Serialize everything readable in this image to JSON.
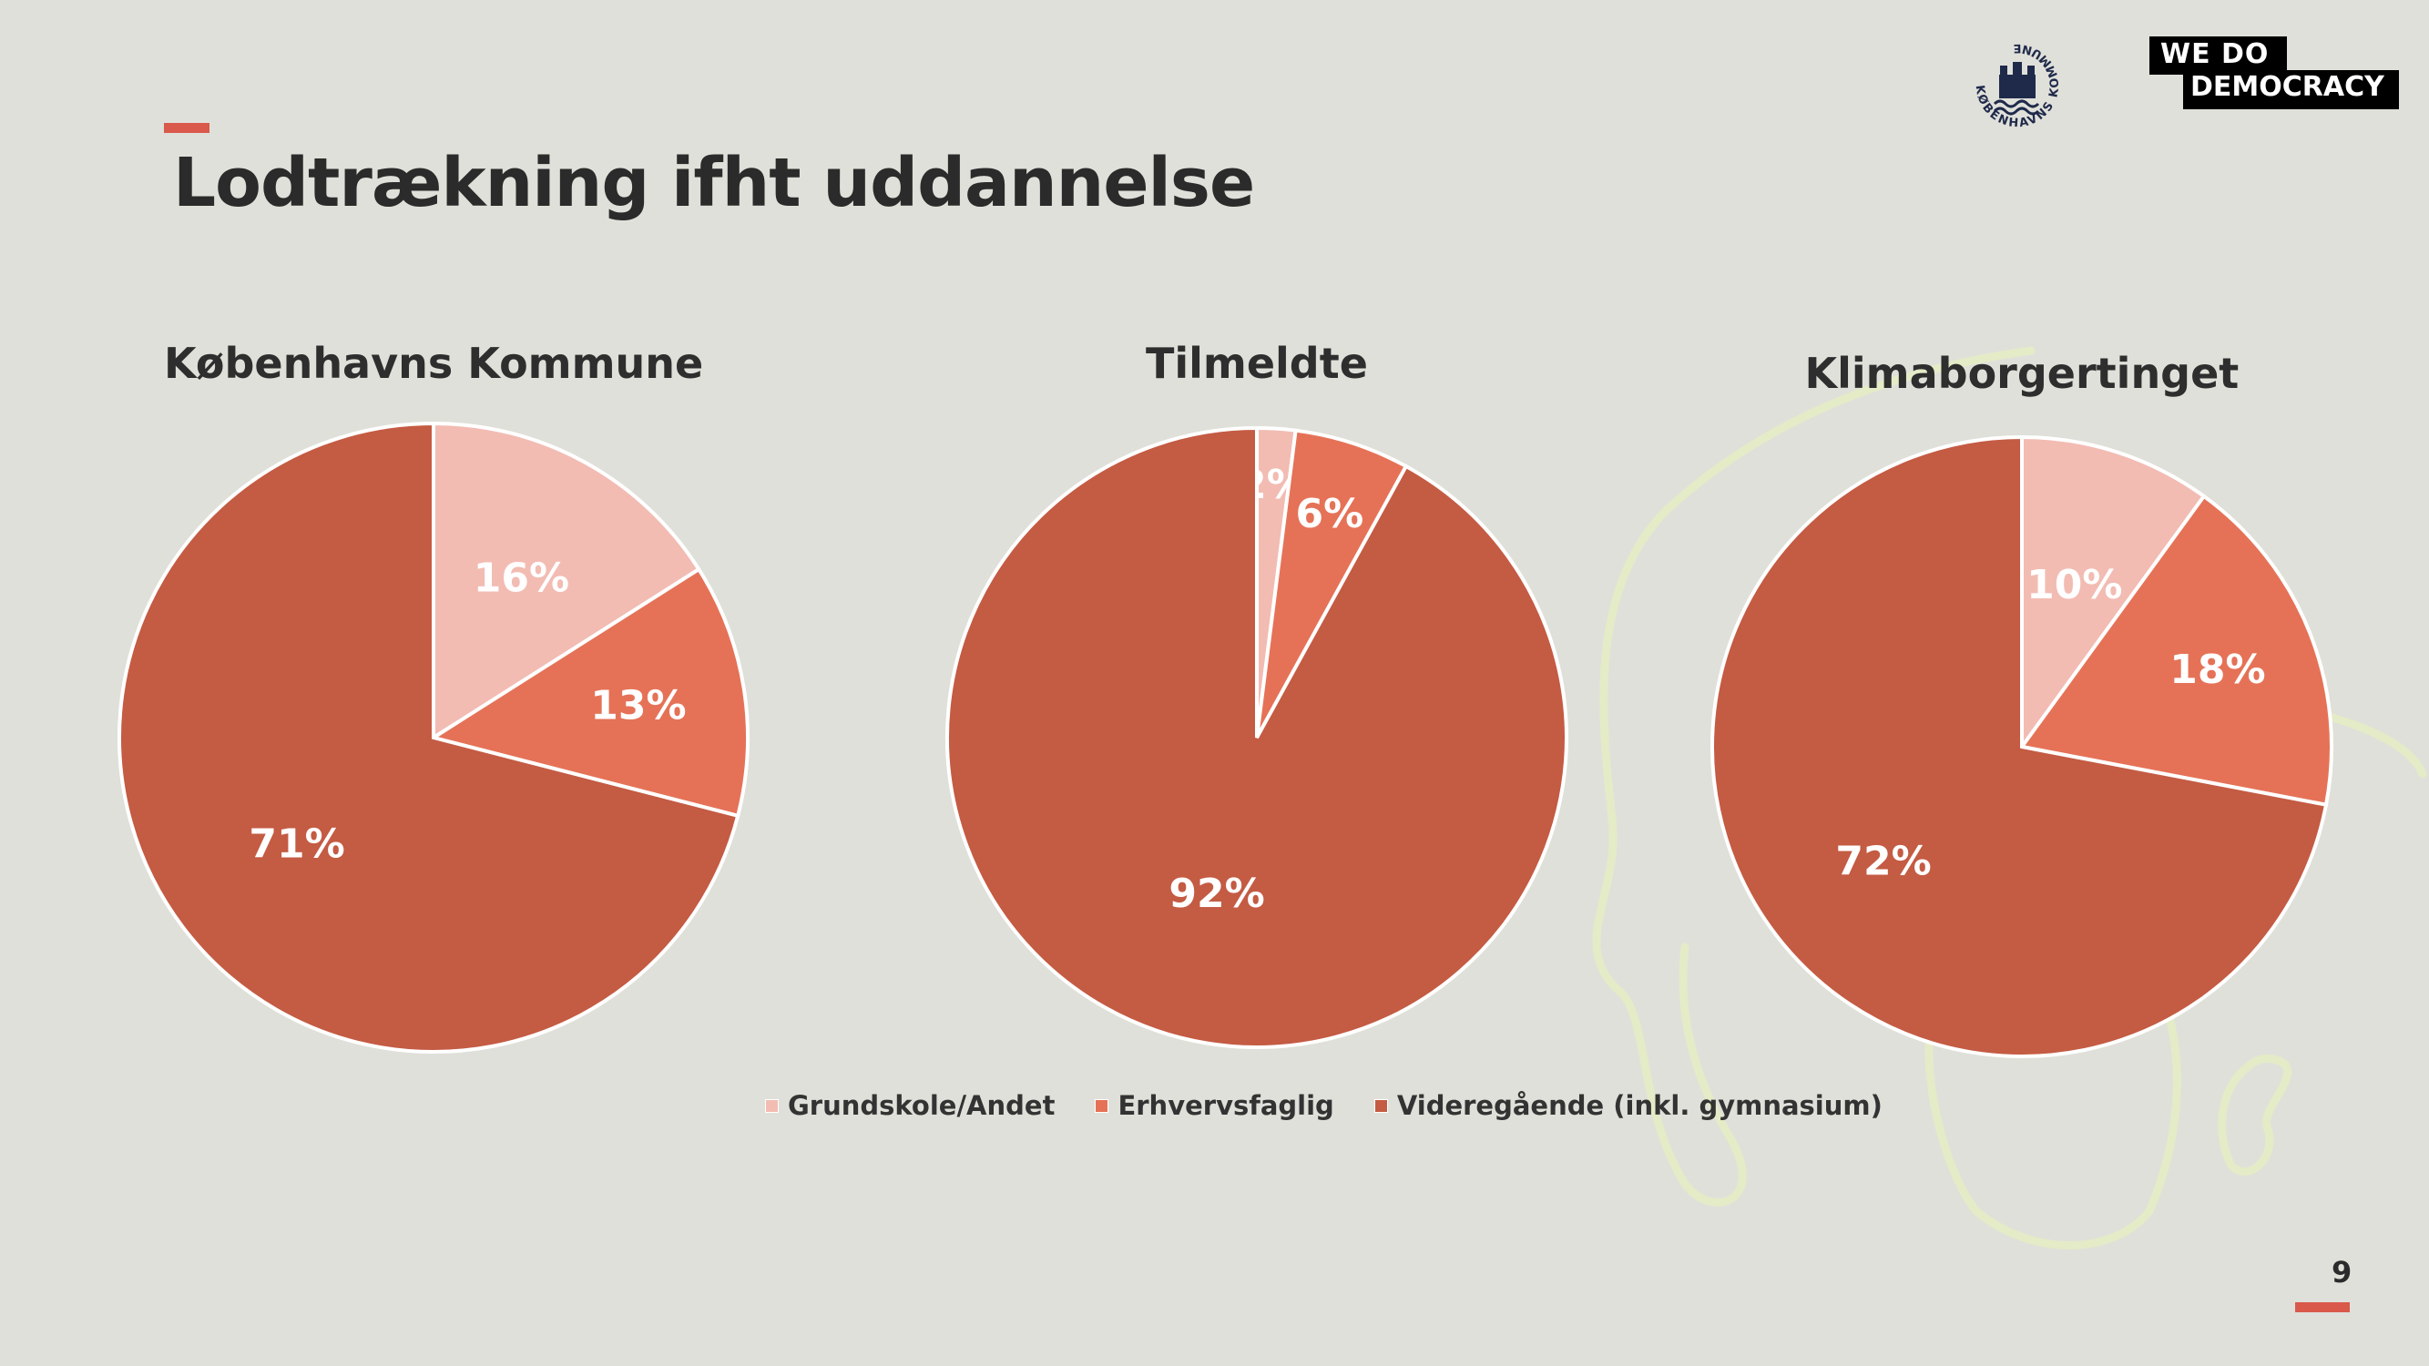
{
  "slide": {
    "title": "Lodtrækning ifht uddannelse",
    "page_number": "9",
    "logos": {
      "kk_text": "KØBENHAVNS KOMMUNE",
      "wdd_line1": "WE  DO",
      "wdd_line2": "DEMOCRACY"
    }
  },
  "colors": {
    "background": "#e0e0da",
    "accent": "#d9594a",
    "grundskole": "#f2bcb3",
    "erhvervsfaglig": "#e57257",
    "videregaaende": "#c45b43"
  },
  "legend": [
    {
      "label": "Grundskole/Andet",
      "color": "#f2bcb3"
    },
    {
      "label": "Erhvervsfaglig",
      "color": "#e57257"
    },
    {
      "label": "Videregående (inkl. gymnasium)",
      "color": "#c45b43"
    }
  ],
  "chart_data": [
    {
      "type": "pie",
      "title": "Københavns Kommune",
      "categories": [
        "Grundskole/Andet",
        "Erhvervsfaglig",
        "Videregående (inkl. gymnasium)"
      ],
      "values": [
        16,
        13,
        71
      ],
      "labels": [
        "16%",
        "13%",
        "71%"
      ],
      "colors": [
        "#f2bcb3",
        "#e57257",
        "#c45b43"
      ],
      "start": "12 o'clock",
      "direction": "clockwise"
    },
    {
      "type": "pie",
      "title": "Tilmeldte",
      "categories": [
        "Grundskole/Andet",
        "Erhvervsfaglig",
        "Videregående (inkl. gymnasium)"
      ],
      "values": [
        2,
        6,
        92
      ],
      "labels": [
        "2%",
        "6%",
        "92%"
      ],
      "colors": [
        "#f2bcb3",
        "#e57257",
        "#c45b43"
      ],
      "start": "12 o'clock",
      "direction": "clockwise"
    },
    {
      "type": "pie",
      "title": "Klimaborgertinget",
      "categories": [
        "Grundskole/Andet",
        "Erhvervsfaglig",
        "Videregående (inkl. gymnasium)"
      ],
      "values": [
        10,
        18,
        72
      ],
      "labels": [
        "10%",
        "18%",
        "72%"
      ],
      "colors": [
        "#f2bcb3",
        "#e57257",
        "#c45b43"
      ],
      "start": "12 o'clock",
      "direction": "clockwise"
    }
  ]
}
